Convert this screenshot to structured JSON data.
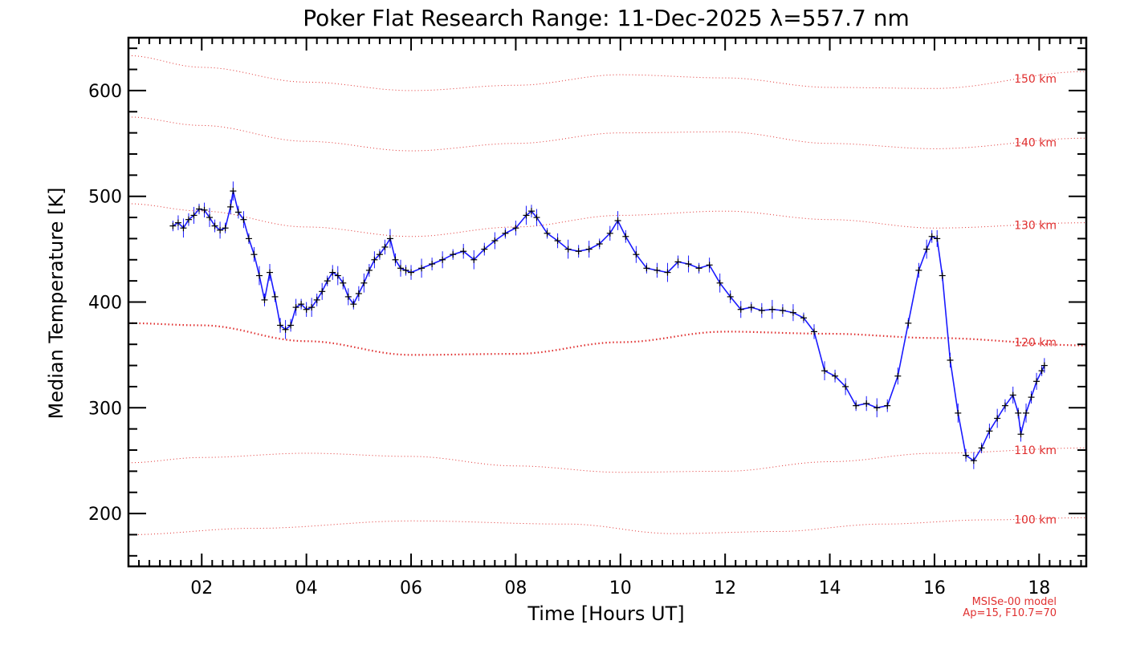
{
  "chart_data": {
    "type": "line",
    "title": "Poker Flat Research Range: 11-Dec-2025 λ=557.7 nm",
    "xlabel": "Time [Hours UT]",
    "ylabel": "Median Temperature [K]",
    "xlim": [
      0.6,
      18.9
    ],
    "ylim": [
      150,
      650
    ],
    "x_ticks": [
      {
        "value": 2,
        "label": "02"
      },
      {
        "value": 4,
        "label": "04"
      },
      {
        "value": 6,
        "label": "06"
      },
      {
        "value": 8,
        "label": "08"
      },
      {
        "value": 10,
        "label": "10"
      },
      {
        "value": 12,
        "label": "12"
      },
      {
        "value": 14,
        "label": "14"
      },
      {
        "value": 16,
        "label": "16"
      },
      {
        "value": 18,
        "label": "18"
      }
    ],
    "y_ticks": [
      {
        "value": 200,
        "label": "200"
      },
      {
        "value": 300,
        "label": "300"
      },
      {
        "value": 400,
        "label": "400"
      },
      {
        "value": 500,
        "label": "500"
      },
      {
        "value": 600,
        "label": "600"
      }
    ],
    "grid": false,
    "colors": {
      "series": "#1a1aff",
      "markers": "#000000",
      "model": "#e03030"
    },
    "series": [
      {
        "x": [
          1.45,
          1.55,
          1.65,
          1.75,
          1.85,
          1.95,
          2.05,
          2.15,
          2.25,
          2.35,
          2.45,
          2.55,
          2.6,
          2.7,
          2.8,
          2.9,
          3.0,
          3.1,
          3.2,
          3.3,
          3.4,
          3.5,
          3.6,
          3.7,
          3.8,
          3.9,
          4.0,
          4.1,
          4.2,
          4.3,
          4.4,
          4.5,
          4.6,
          4.7,
          4.8,
          4.9,
          5.0,
          5.1,
          5.2,
          5.3,
          5.4,
          5.5,
          5.6,
          5.7,
          5.8,
          5.9,
          6.0,
          6.2,
          6.4,
          6.6,
          6.8,
          7.0,
          7.2,
          7.4,
          7.6,
          7.8,
          8.0,
          8.2,
          8.3,
          8.4,
          8.6,
          8.8,
          9.0,
          9.2,
          9.4,
          9.6,
          9.8,
          9.95,
          10.1,
          10.3,
          10.5,
          10.7,
          10.9,
          11.1,
          11.3,
          11.5,
          11.7,
          11.9,
          12.1,
          12.3,
          12.5,
          12.7,
          12.9,
          13.1,
          13.3,
          13.5,
          13.7,
          13.9,
          14.1,
          14.3,
          14.5,
          14.7,
          14.9,
          15.1,
          15.3,
          15.5,
          15.7,
          15.85,
          15.95,
          16.05,
          16.15,
          16.3,
          16.45,
          16.6,
          16.75,
          16.9,
          17.05,
          17.2,
          17.35,
          17.5,
          17.6,
          17.65,
          17.75,
          17.85,
          17.95,
          18.05,
          18.1
        ],
        "values": [
          472,
          475,
          470,
          478,
          482,
          488,
          487,
          480,
          472,
          468,
          470,
          490,
          505,
          485,
          478,
          460,
          445,
          425,
          402,
          428,
          405,
          378,
          374,
          378,
          395,
          398,
          393,
          395,
          402,
          410,
          420,
          428,
          425,
          418,
          405,
          398,
          408,
          418,
          430,
          440,
          445,
          452,
          460,
          440,
          432,
          430,
          428,
          432,
          436,
          440,
          445,
          448,
          440,
          450,
          458,
          465,
          470,
          482,
          486,
          480,
          465,
          458,
          450,
          448,
          450,
          455,
          465,
          477,
          462,
          445,
          432,
          430,
          428,
          438,
          436,
          432,
          435,
          418,
          405,
          393,
          395,
          392,
          393,
          392,
          390,
          385,
          372,
          335,
          330,
          320,
          302,
          304,
          300,
          302,
          330,
          380,
          430,
          450,
          462,
          460,
          425,
          345,
          295,
          255,
          250,
          262,
          278,
          290,
          302,
          312,
          295,
          275,
          295,
          310,
          325,
          335,
          340
        ]
      }
    ],
    "model_curves": [
      {
        "label": "100 km",
        "x": [
          0.6,
          3,
          6,
          9,
          11,
          13,
          15,
          17,
          18.9
        ],
        "values": [
          180,
          186,
          193,
          190,
          181,
          183,
          190,
          194,
          196
        ]
      },
      {
        "label": "110 km",
        "x": [
          0.6,
          2,
          4,
          6,
          8,
          10,
          12,
          14,
          16,
          18.9
        ],
        "values": [
          248,
          253,
          257,
          254,
          245,
          239,
          240,
          249,
          257,
          262
        ]
      },
      {
        "label": "120 km",
        "x": [
          0.6,
          2,
          4,
          6,
          8,
          10,
          12,
          14,
          16,
          18.9
        ],
        "values": [
          380,
          378,
          363,
          350,
          351,
          362,
          372,
          370,
          366,
          359
        ]
      },
      {
        "label": "130 km",
        "x": [
          0.6,
          2,
          4,
          6,
          8,
          10,
          12,
          14,
          16,
          18.9
        ],
        "values": [
          493,
          486,
          471,
          462,
          471,
          482,
          486,
          478,
          470,
          475
        ]
      },
      {
        "label": "140 km",
        "x": [
          0.6,
          2,
          4,
          6,
          8,
          10,
          12,
          14,
          16,
          18.9
        ],
        "values": [
          575,
          567,
          552,
          543,
          550,
          560,
          561,
          550,
          545,
          555
        ]
      },
      {
        "label": "150 km",
        "x": [
          0.6,
          2,
          4,
          6,
          8,
          10,
          12,
          14,
          16,
          18.9
        ],
        "values": [
          633,
          622,
          608,
          600,
          605,
          615,
          612,
          603,
          602,
          618
        ]
      }
    ],
    "model_note": [
      "MSISe-00 model",
      "Ap=15, F10.7=70"
    ]
  }
}
